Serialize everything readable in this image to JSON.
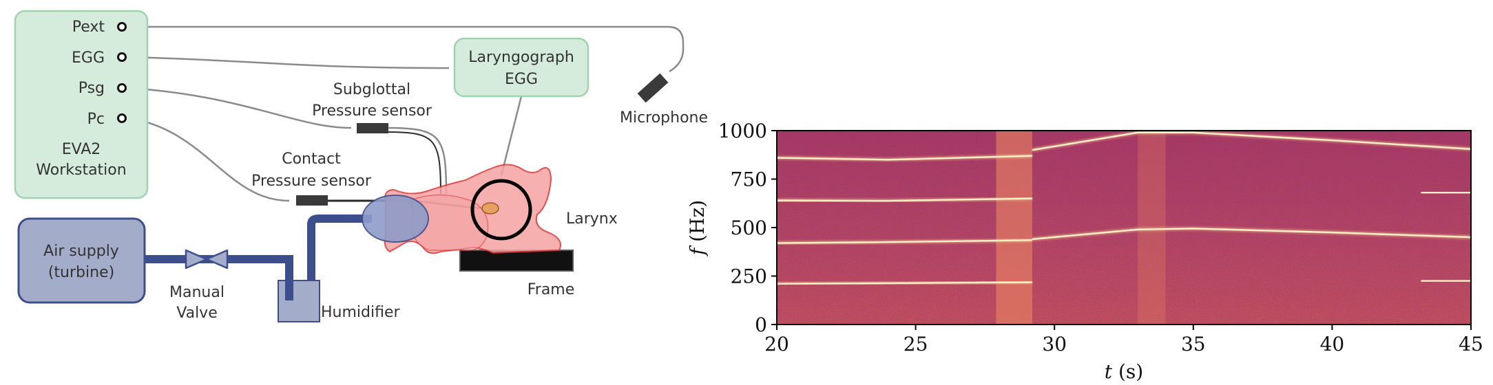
{
  "setup": {
    "workstation": {
      "ports": [
        "Pext",
        "EGG",
        "Psg",
        "Pc"
      ],
      "name_line1": "EVA2",
      "name_line2": "Workstation",
      "color": "#d5ecdc",
      "border": "#9fd3ae"
    },
    "laryngograph": {
      "line1": "Laryngograph",
      "line2": "EGG"
    },
    "microphone": "Microphone",
    "subglottal_sensor": {
      "line1": "Subglottal",
      "line2": "Pressure sensor"
    },
    "contact_sensor": {
      "line1": "Contact",
      "line2": "Pressure sensor"
    },
    "larynx": "Larynx",
    "frame": "Frame",
    "air_supply": {
      "line1": "Air supply",
      "line2": "(turbine)"
    },
    "valve": {
      "line1": "Manual",
      "line2": "Valve"
    },
    "humidifier": "Humidifier",
    "colors": {
      "pipe": "#3c4f8c",
      "supply_fill": "#a3acc9",
      "larynx_fill": "#f5a3a3",
      "larynx_border": "#e03030",
      "cable": "#8a8a8a",
      "sensor": "#3a3a3a"
    }
  },
  "chart_data": {
    "type": "heatmap",
    "title": "",
    "xlabel_var": "t",
    "xlabel_unit": "(s)",
    "ylabel_var": "f",
    "ylabel_unit": "(Hz)",
    "xlim": [
      20,
      45
    ],
    "ylim": [
      0,
      1000
    ],
    "xticks": [
      20,
      25,
      30,
      35,
      40,
      45
    ],
    "yticks": [
      0,
      250,
      500,
      750,
      1000
    ],
    "colormap": "magma",
    "harmonic_tracks": [
      {
        "segment": "before-transition",
        "t": [
          20,
          24,
          29.2
        ],
        "f": [
          210,
          213,
          218
        ]
      },
      {
        "segment": "before-transition",
        "t": [
          20,
          24,
          29.2
        ],
        "f": [
          420,
          425,
          435
        ]
      },
      {
        "segment": "before-transition",
        "t": [
          20,
          24,
          29.2
        ],
        "f": [
          640,
          638,
          650
        ]
      },
      {
        "segment": "before-transition",
        "t": [
          20,
          24,
          29.2
        ],
        "f": [
          860,
          850,
          870
        ]
      },
      {
        "segment": "after-transition",
        "t": [
          29.2,
          33,
          35,
          40,
          45
        ],
        "f": [
          440,
          490,
          495,
          475,
          450
        ]
      },
      {
        "segment": "after-transition",
        "t": [
          29.2,
          33,
          35,
          40,
          45
        ],
        "f": [
          900,
          990,
          990,
          950,
          905
        ]
      },
      {
        "segment": "after-transition",
        "t": [
          43.2,
          45
        ],
        "f": [
          225,
          225
        ]
      },
      {
        "segment": "after-transition",
        "t": [
          43.2,
          45
        ],
        "f": [
          680,
          680
        ]
      }
    ],
    "broadband_bursts": [
      {
        "t_start": 27.9,
        "t_end": 29.2
      },
      {
        "t_start": 33.0,
        "t_end": 34.0
      }
    ]
  }
}
